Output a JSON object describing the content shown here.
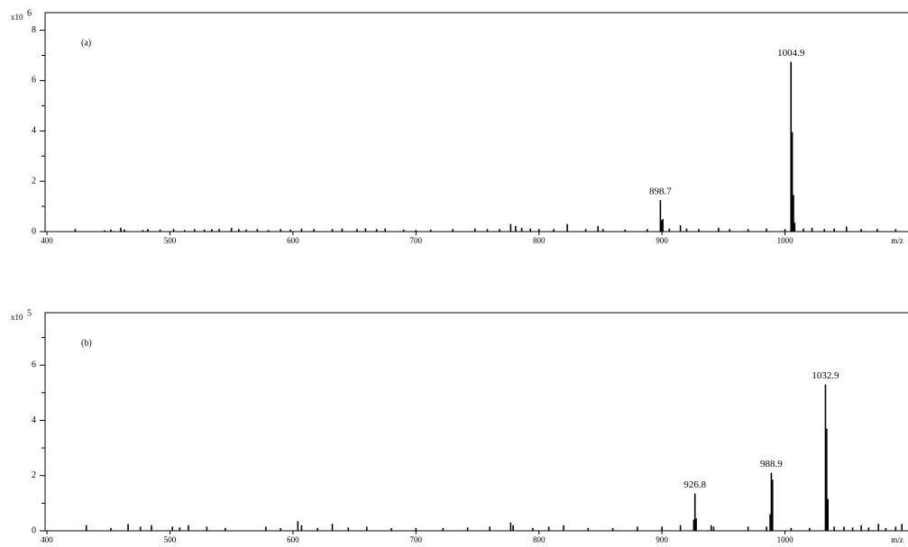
{
  "chart_data": [
    {
      "type": "bar",
      "title": "(a)",
      "ylabel_base": "x10",
      "ylabel_exponent": "6",
      "xlabel": "m/z",
      "color": "#000000",
      "xlim": [
        398.5,
        1100
      ],
      "xticks": [
        400,
        500,
        600,
        700,
        800,
        900,
        1000
      ],
      "ylim": [
        0,
        8.7
      ],
      "yticks": [
        0,
        2,
        4,
        6,
        8
      ],
      "yminor": [
        1,
        3,
        5,
        7
      ],
      "x": [
        423,
        447,
        452,
        460,
        463,
        478,
        482,
        492,
        503,
        512,
        520,
        528,
        534,
        540,
        550,
        556,
        562,
        571,
        580,
        590,
        598,
        607,
        617,
        632,
        640,
        652,
        659,
        668,
        675,
        690,
        700,
        712,
        730,
        748,
        758,
        768,
        777,
        781,
        786,
        793,
        800,
        812,
        823,
        838,
        848,
        852,
        870,
        888,
        898.7,
        899.7,
        900.7,
        906,
        915,
        920,
        930,
        946,
        955,
        970,
        985,
        1000,
        1004.9,
        1005.9,
        1006.9,
        1007.9,
        1015,
        1022,
        1032,
        1040,
        1050,
        1062,
        1075,
        1090
      ],
      "values": [
        0.1,
        0.05,
        0.08,
        0.15,
        0.08,
        0.06,
        0.1,
        0.08,
        0.1,
        0.06,
        0.1,
        0.08,
        0.1,
        0.1,
        0.15,
        0.1,
        0.08,
        0.1,
        0.06,
        0.1,
        0.08,
        0.12,
        0.1,
        0.1,
        0.12,
        0.1,
        0.13,
        0.1,
        0.12,
        0.08,
        0.06,
        0.08,
        0.1,
        0.12,
        0.1,
        0.1,
        0.3,
        0.22,
        0.15,
        0.12,
        0.1,
        0.1,
        0.3,
        0.1,
        0.22,
        0.1,
        0.08,
        0.1,
        1.25,
        0.45,
        0.5,
        0.12,
        0.25,
        0.12,
        0.1,
        0.15,
        0.1,
        0.1,
        0.12,
        0.1,
        6.75,
        3.95,
        1.45,
        0.35,
        0.12,
        0.15,
        0.1,
        0.12,
        0.2,
        0.1,
        0.1,
        0.1
      ],
      "peak_labels": [
        898.7,
        1004.9
      ]
    },
    {
      "type": "bar",
      "title": "(b)",
      "ylabel_base": "x10",
      "ylabel_exponent": "5",
      "xlabel": "m/z",
      "color": "#000000",
      "xlim": [
        398.5,
        1100
      ],
      "xticks": [
        400,
        500,
        600,
        700,
        800,
        900,
        1000
      ],
      "ylim": [
        0,
        7.9
      ],
      "yticks": [
        0,
        2,
        4,
        6
      ],
      "yminor": [
        1,
        3,
        5,
        7
      ],
      "x": [
        432,
        452,
        466,
        476,
        485,
        502,
        508,
        515,
        530,
        545,
        578,
        590,
        604,
        607,
        620,
        632,
        645,
        660,
        680,
        700,
        722,
        742,
        760,
        777,
        779,
        795,
        808,
        820,
        840,
        860,
        880,
        900,
        915,
        925.8,
        926.8,
        927.8,
        940,
        942,
        970,
        985,
        987.9,
        988.9,
        989.9,
        1005,
        1020,
        1032.9,
        1033.9,
        1034.9,
        1040,
        1048,
        1055,
        1062,
        1068,
        1076,
        1082,
        1090,
        1095
      ],
      "values": [
        0.2,
        0.1,
        0.25,
        0.15,
        0.2,
        0.15,
        0.12,
        0.2,
        0.15,
        0.1,
        0.15,
        0.1,
        0.35,
        0.2,
        0.1,
        0.25,
        0.12,
        0.15,
        0.1,
        0.1,
        0.1,
        0.12,
        0.15,
        0.3,
        0.2,
        0.1,
        0.15,
        0.2,
        0.1,
        0.1,
        0.15,
        0.15,
        0.2,
        0.4,
        1.35,
        0.45,
        0.2,
        0.15,
        0.15,
        0.15,
        0.6,
        2.1,
        1.85,
        0.1,
        0.1,
        5.3,
        3.7,
        1.15,
        0.15,
        0.15,
        0.12,
        0.2,
        0.12,
        0.25,
        0.1,
        0.15,
        0.25
      ],
      "peak_labels": [
        926.8,
        988.9,
        1032.9
      ]
    }
  ]
}
